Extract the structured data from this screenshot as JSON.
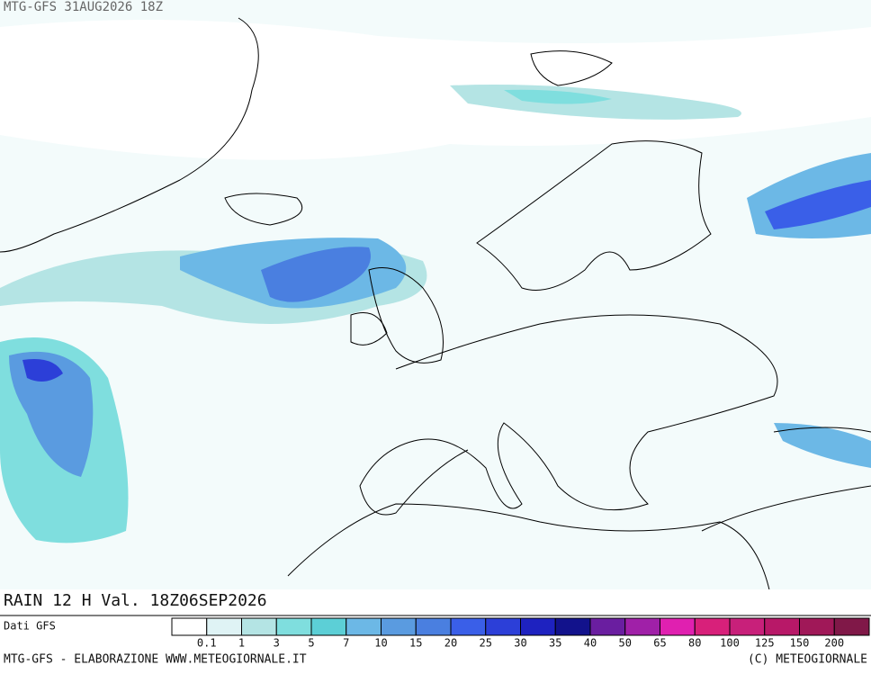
{
  "header": {
    "run": "MTG-GFS 31AUG2026 18Z"
  },
  "map": {
    "caption": "RAIN 12 H Val. 18Z06SEP2026"
  },
  "legend": {
    "source": "Dati GFS",
    "colors": [
      "#ffffff",
      "#dff3f5",
      "#b4e4e4",
      "#7fdede",
      "#5ccfd6",
      "#6cb8e6",
      "#5a9be0",
      "#4a7fe0",
      "#3a5fe8",
      "#2c3fd8",
      "#1e22c0",
      "#12128c",
      "#6a1ea0",
      "#a020a8",
      "#e020b0",
      "#d8207a",
      "#c8207a",
      "#b81868",
      "#a01858",
      "#801848"
    ],
    "labels": [
      0.1,
      1,
      3,
      5,
      7,
      10,
      15,
      20,
      25,
      30,
      35,
      40,
      50,
      65,
      80,
      100,
      125,
      150,
      200
    ]
  },
  "footer": {
    "left": "MTG-GFS - ELABORAZIONE WWW.METEOGIORNALE.IT",
    "right": "(C) METEOGIORNALE"
  }
}
